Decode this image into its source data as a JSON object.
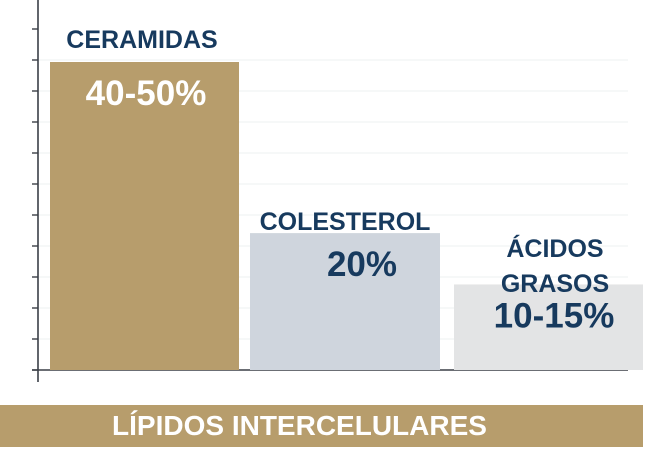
{
  "chart_data": {
    "type": "bar",
    "categories": [
      "CERAMIDAS",
      "COLESTEROL",
      "ÁCIDOS GRASOS"
    ],
    "category_lines": [
      [
        "CERAMIDAS"
      ],
      [
        "COLESTEROL"
      ],
      [
        "ÁCIDOS",
        "GRASOS"
      ]
    ],
    "value_labels": [
      "40-50%",
      "20%",
      "10-15%"
    ],
    "values": [
      45,
      20,
      12.5
    ],
    "ylim": [
      0,
      50
    ],
    "grid": true,
    "bar_colors": [
      "#b79d6c",
      "#cfd5dd",
      "#e3e4e5"
    ],
    "value_label_colors": [
      "#ffffff",
      "#173a5e",
      "#173a5e"
    ],
    "category_color": "#173a5e"
  },
  "footer": {
    "label": "LÍPIDOS INTERCELULARES",
    "color": "#b79d6c"
  }
}
